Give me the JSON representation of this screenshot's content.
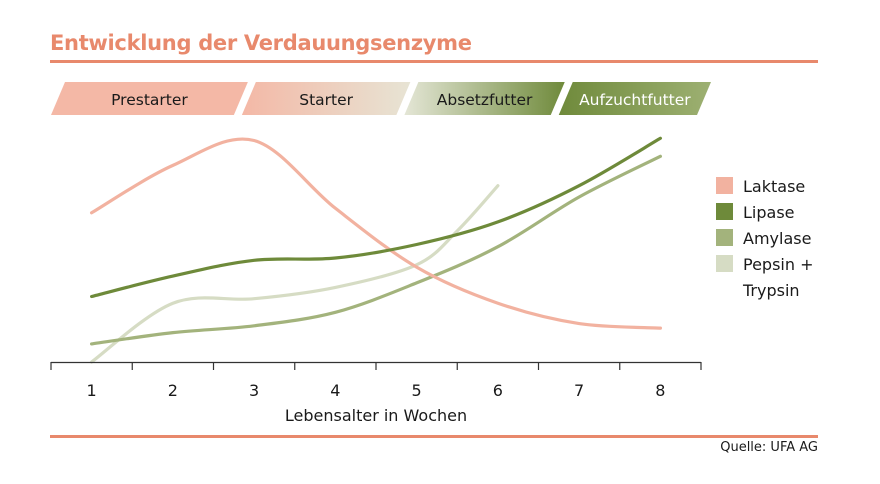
{
  "title": "Entwicklung der Verdauungsenzyme",
  "source": "Quelle: UFA AG",
  "colors": {
    "accent": "#e8896c",
    "laktase": "#f2b2a0",
    "lipase": "#6e8a3a",
    "amylase": "#a3b37c",
    "pepsin": "#d6dcc4"
  },
  "chart_data": {
    "type": "line",
    "title": "Entwicklung der Verdauungsenzyme",
    "xlabel": "Lebensalter in Wochen",
    "ylabel": "",
    "x": [
      1,
      2,
      3,
      4,
      5,
      6,
      7,
      8
    ],
    "x_ticks": [
      "1",
      "2",
      "3",
      "4",
      "5",
      "6",
      "7",
      "8"
    ],
    "xlim": [
      0.5,
      8.5
    ],
    "ylim": [
      0,
      100
    ],
    "y_axis_labeled": false,
    "grid": false,
    "legend_position": "right",
    "phases": [
      {
        "label": "Prestarter",
        "from_week": 0.5,
        "to_week": 2.8
      },
      {
        "label": "Starter",
        "from_week": 2.8,
        "to_week": 4.8
      },
      {
        "label": "Absetzfutter",
        "from_week": 4.8,
        "to_week": 6.7
      },
      {
        "label": "Aufzuchtfutter",
        "from_week": 6.7,
        "to_week": 8.5
      }
    ],
    "series": [
      {
        "name": "Laktase",
        "color": "#f2b2a0",
        "x": [
          1,
          2,
          3,
          4,
          5,
          6,
          7,
          8
        ],
        "y": [
          66,
          87,
          98,
          68,
          42,
          26,
          17,
          15
        ]
      },
      {
        "name": "Lipase",
        "color": "#6e8a3a",
        "x": [
          1,
          2,
          3,
          4,
          5,
          6,
          7,
          8
        ],
        "y": [
          29,
          38,
          45,
          46,
          52,
          62,
          78,
          99
        ]
      },
      {
        "name": "Amylase",
        "color": "#a3b37c",
        "x": [
          1,
          2,
          3,
          4,
          5,
          6,
          7,
          8
        ],
        "y": [
          8,
          13,
          16,
          22,
          35,
          51,
          73,
          91
        ]
      },
      {
        "name": "Pepsin +\nTrypsin",
        "color": "#d6dcc4",
        "x": [
          1,
          2,
          3,
          4,
          5,
          5.5,
          6
        ],
        "y": [
          0,
          26,
          28,
          33,
          43,
          58,
          78
        ]
      }
    ]
  }
}
